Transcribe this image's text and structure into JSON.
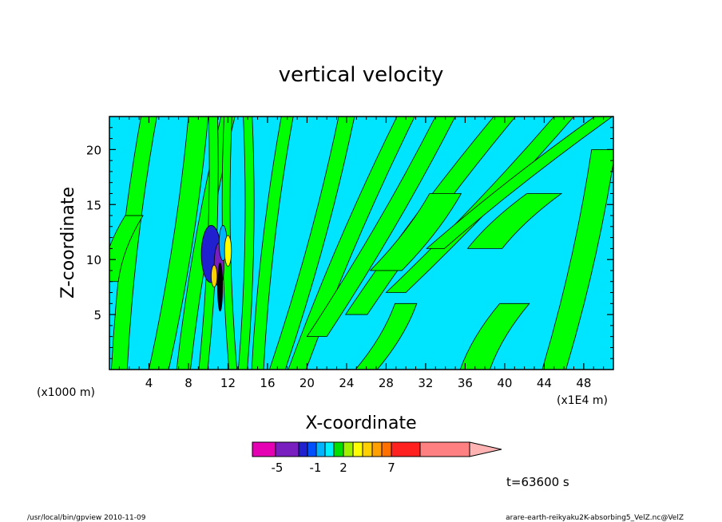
{
  "chart_data": {
    "type": "contour",
    "title": "vertical velocity",
    "xlabel": "X-coordinate",
    "ylabel": "Z-coordinate",
    "x_unit_left": "(x1000 m)",
    "x_unit_right": "(x1E4 m)",
    "xlim": [
      0,
      51
    ],
    "ylim": [
      0,
      23
    ],
    "x_ticks": [
      "4",
      "8",
      "12",
      "16",
      "20",
      "24",
      "28",
      "32",
      "36",
      "40",
      "44",
      "48"
    ],
    "y_ticks": [
      "5",
      "10",
      "15",
      "20"
    ],
    "time_label": "t=63600 s",
    "colorbar": {
      "colors": [
        "#e600b3",
        "#7a1fbf",
        "#2020d0",
        "#0050ff",
        "#00b4ff",
        "#00f0ff",
        "#00e000",
        "#a0f000",
        "#ffff00",
        "#ffd000",
        "#ffa000",
        "#ff7000",
        "#ff2020",
        "#ff8080",
        "#ffb3b3"
      ],
      "tick_labels": [
        "-5",
        "-1",
        "2",
        "7"
      ]
    },
    "palette": {
      "background": "#00e5ff",
      "positive": "#00ff00",
      "line": "#000000"
    }
  },
  "footer": {
    "left": "/usr/local/bin/gpview   2010-11-09",
    "right": "arare-earth-reikyaku2K-absorbing5_VelZ.nc@VelZ"
  }
}
